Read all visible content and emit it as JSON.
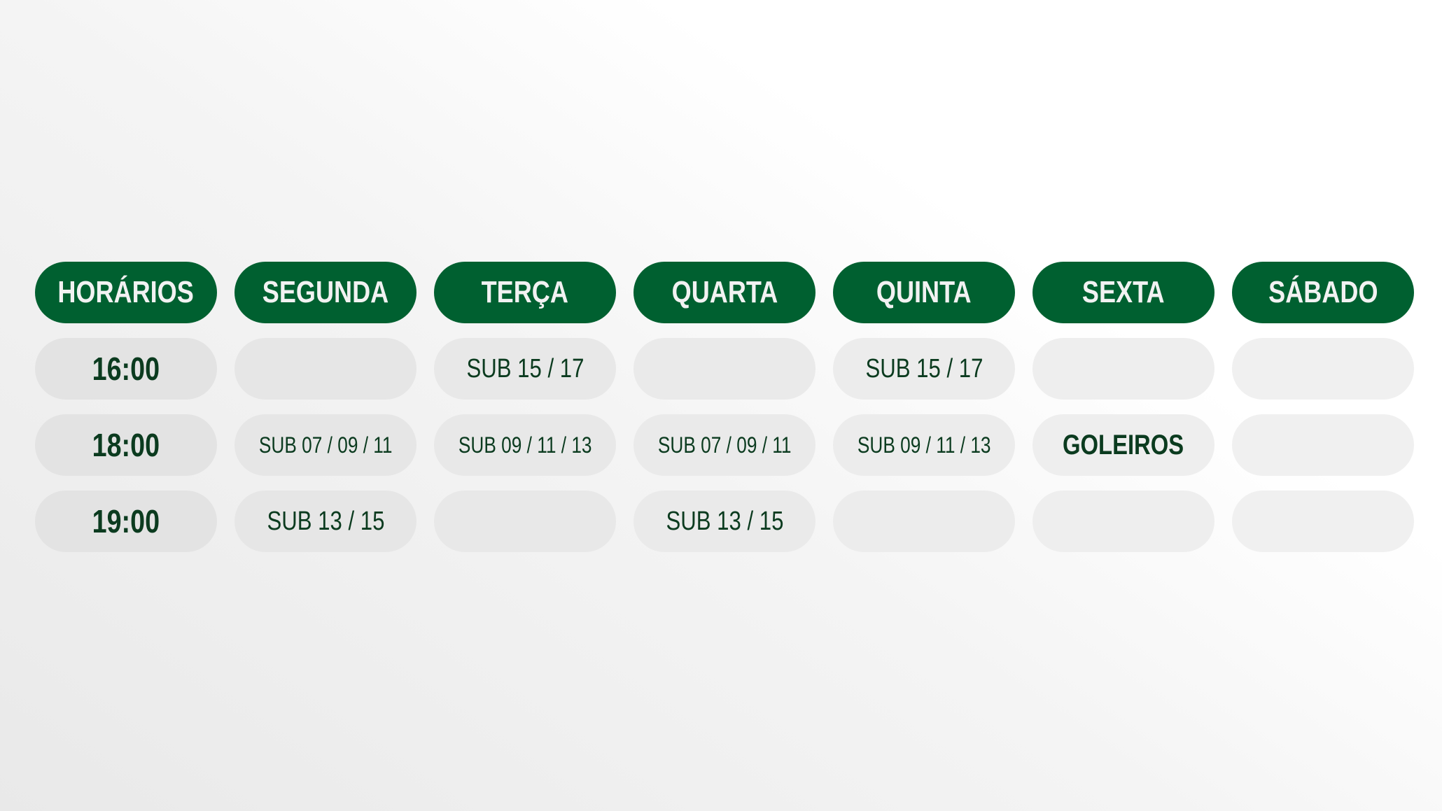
{
  "colors": {
    "header_bg": "#006030",
    "header_text": "#f2f2f2",
    "cell_text": "#0b3b1f"
  },
  "headers": [
    "HORÁRIOS",
    "SEGUNDA",
    "TERÇA",
    "QUARTA",
    "QUINTA",
    "SEXTA",
    "SÁBADO"
  ],
  "rows": [
    {
      "time": "16:00",
      "cells": [
        "",
        "SUB 15 / 17",
        "",
        "SUB 15 / 17",
        "",
        ""
      ]
    },
    {
      "time": "18:00",
      "cells": [
        "SUB 07 / 09 / 11",
        "SUB 09 / 11 / 13",
        "SUB 07 / 09 / 11",
        "SUB 09 / 11 / 13",
        "GOLEIROS",
        ""
      ]
    },
    {
      "time": "19:00",
      "cells": [
        "SUB 13 / 15",
        "",
        "SUB 13 / 15",
        "",
        "",
        ""
      ]
    }
  ]
}
